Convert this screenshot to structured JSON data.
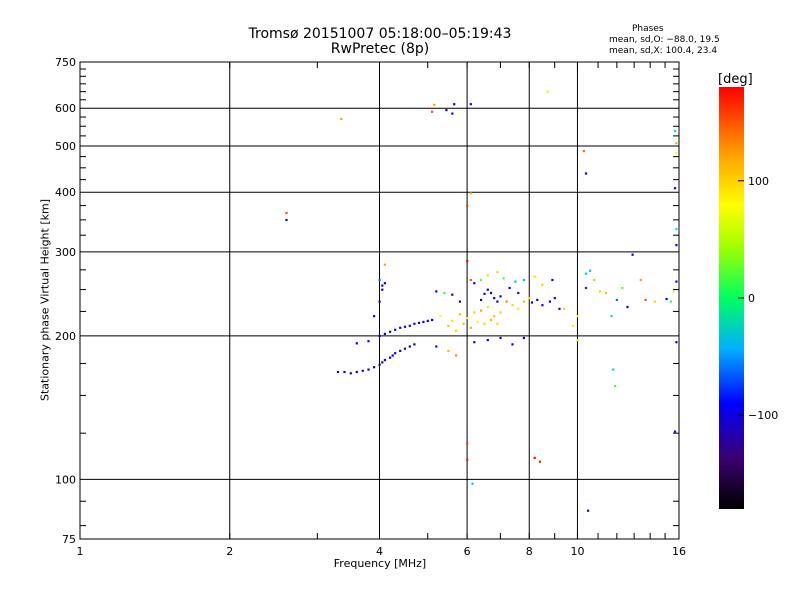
{
  "chart_data": {
    "type": "scatter",
    "title": "Tromsø 20151007 05:18:00–05:19:43",
    "subtitle": "RwPretec (8p)",
    "xlabel": "Frequency [MHz]",
    "ylabel": "Stationary phase Virtual Height [km]",
    "x_scale": "log",
    "y_scale": "log",
    "xlim": [
      1,
      16
    ],
    "ylim": [
      75,
      750
    ],
    "x_ticks": [
      1,
      2,
      4,
      6,
      8,
      10,
      16
    ],
    "x_tick_labels": [
      "1",
      "2",
      "4",
      "6",
      "8",
      "10",
      "16"
    ],
    "y_ticks": [
      75,
      100,
      200,
      300,
      400,
      500,
      600,
      750
    ],
    "y_tick_labels": [
      "75",
      "100",
      "200",
      "300",
      "400",
      "500",
      "600",
      "750"
    ],
    "grid": true,
    "colorbar": {
      "label": "[deg]",
      "range": [
        -180,
        180
      ],
      "ticks": [
        100,
        0,
        -100
      ],
      "tick_labels": [
        "100",
        "0",
        "−100"
      ]
    },
    "phase_stats": {
      "header": "Phases",
      "o_line": "mean, sd,O: −88.0, 19.5",
      "x_line": "mean, sd,X: 100.4, 23.4"
    },
    "points": [
      [
        3.3,
        168,
        -100
      ],
      [
        3.4,
        168,
        -105
      ],
      [
        3.5,
        167,
        -100
      ],
      [
        3.6,
        168,
        -98
      ],
      [
        3.7,
        169,
        -102
      ],
      [
        3.8,
        170,
        -100
      ],
      [
        3.9,
        172,
        -95
      ],
      [
        4.0,
        174,
        -100
      ],
      [
        4.05,
        176,
        -104
      ],
      [
        4.1,
        178,
        -99
      ],
      [
        4.2,
        180,
        -101
      ],
      [
        4.25,
        182,
        -97
      ],
      [
        4.3,
        184,
        -103
      ],
      [
        4.4,
        186,
        -100
      ],
      [
        4.5,
        188,
        -96
      ],
      [
        4.6,
        190,
        -101
      ],
      [
        4.7,
        192,
        -99
      ],
      [
        4.0,
        200,
        -102
      ],
      [
        4.1,
        202,
        -97
      ],
      [
        4.2,
        204,
        -103
      ],
      [
        4.3,
        206,
        -98
      ],
      [
        4.4,
        208,
        -100
      ],
      [
        4.5,
        209,
        -96
      ],
      [
        4.6,
        210,
        -101
      ],
      [
        4.7,
        212,
        -99
      ],
      [
        4.8,
        213,
        -100
      ],
      [
        4.9,
        214,
        -97
      ],
      [
        5.0,
        215,
        -102
      ],
      [
        5.1,
        216,
        -98
      ],
      [
        3.6,
        193,
        -100
      ],
      [
        3.8,
        195,
        -105
      ],
      [
        4.0,
        236,
        -100
      ],
      [
        4.05,
        250,
        -104
      ],
      [
        4.1,
        258,
        -98
      ],
      [
        4.0,
        262,
        -60
      ],
      [
        4.1,
        282,
        120
      ],
      [
        4.05,
        255,
        -101
      ],
      [
        3.9,
        220,
        -100
      ],
      [
        5.3,
        220,
        80
      ],
      [
        5.5,
        210,
        110
      ],
      [
        5.6,
        215,
        95
      ],
      [
        5.7,
        205,
        100
      ],
      [
        5.8,
        222,
        105
      ],
      [
        5.9,
        212,
        110
      ],
      [
        6.0,
        218,
        90
      ],
      [
        6.1,
        208,
        115
      ],
      [
        6.2,
        224,
        100
      ],
      [
        6.3,
        214,
        85
      ],
      [
        6.4,
        226,
        120
      ],
      [
        6.5,
        212,
        100
      ],
      [
        6.6,
        230,
        60
      ],
      [
        6.7,
        216,
        110
      ],
      [
        6.8,
        220,
        105
      ],
      [
        6.9,
        212,
        95
      ],
      [
        7.0,
        224,
        100
      ],
      [
        7.2,
        236,
        130
      ],
      [
        7.4,
        232,
        100
      ],
      [
        7.6,
        228,
        90
      ],
      [
        7.8,
        236,
        110
      ],
      [
        8.0,
        240,
        100
      ],
      [
        6.4,
        238,
        -95
      ],
      [
        6.5,
        245,
        -100
      ],
      [
        6.6,
        250,
        -105
      ],
      [
        6.7,
        246,
        -98
      ],
      [
        6.8,
        240,
        -102
      ],
      [
        6.9,
        236,
        -100
      ],
      [
        7.0,
        242,
        -96
      ],
      [
        7.3,
        252,
        -101
      ],
      [
        7.6,
        246,
        -98
      ],
      [
        8.1,
        235,
        -100
      ],
      [
        8.3,
        238,
        -103
      ],
      [
        8.5,
        232,
        -99
      ],
      [
        8.8,
        236,
        -100
      ],
      [
        9.0,
        240,
        -97
      ],
      [
        9.2,
        228,
        -101
      ],
      [
        5.2,
        248,
        -100
      ],
      [
        5.4,
        246,
        10
      ],
      [
        5.6,
        244,
        -99
      ],
      [
        5.8,
        236,
        -100
      ],
      [
        6.2,
        258,
        -100
      ],
      [
        6.4,
        262,
        30
      ],
      [
        6.6,
        268,
        90
      ],
      [
        6.9,
        272,
        100
      ],
      [
        7.1,
        264,
        20
      ],
      [
        7.5,
        260,
        -40
      ],
      [
        7.8,
        262,
        -30
      ],
      [
        8.2,
        266,
        60
      ],
      [
        8.5,
        256,
        100
      ],
      [
        8.9,
        262,
        -120
      ],
      [
        5.2,
        190,
        -95
      ],
      [
        5.5,
        186,
        110
      ],
      [
        5.7,
        182,
        130
      ],
      [
        6.2,
        194,
        -100
      ],
      [
        6.6,
        196,
        -98
      ],
      [
        7.0,
        198,
        -100
      ],
      [
        7.4,
        192,
        -96
      ],
      [
        7.8,
        198,
        -101
      ],
      [
        5.1,
        590,
        150
      ],
      [
        5.15,
        610,
        120
      ],
      [
        5.45,
        595,
        -100
      ],
      [
        5.6,
        585,
        -105
      ],
      [
        5.65,
        612,
        -98
      ],
      [
        6.1,
        612,
        -100
      ],
      [
        8.7,
        650,
        60
      ],
      [
        3.35,
        570,
        120
      ],
      [
        2.6,
        362,
        150
      ],
      [
        2.6,
        350,
        -100
      ],
      [
        6.0,
        375,
        160
      ],
      [
        6.1,
        398,
        110
      ],
      [
        6.0,
        287,
        180
      ],
      [
        6.1,
        262,
        150
      ],
      [
        6.0,
        119,
        160
      ],
      [
        6.0,
        110,
        170
      ],
      [
        6.15,
        98,
        -30
      ],
      [
        8.2,
        111,
        175
      ],
      [
        8.4,
        109,
        170
      ],
      [
        10.5,
        86,
        -110
      ],
      [
        10.4,
        252,
        -80
      ],
      [
        10.6,
        274,
        -40
      ],
      [
        10.8,
        262,
        40
      ],
      [
        11.1,
        248,
        100
      ],
      [
        11.4,
        246,
        110
      ],
      [
        11.7,
        220,
        -10
      ],
      [
        12.0,
        238,
        -60
      ],
      [
        12.3,
        252,
        30
      ],
      [
        12.6,
        230,
        -100
      ],
      [
        12.9,
        296,
        -120
      ],
      [
        11.8,
        170,
        -20
      ],
      [
        11.9,
        157,
        20
      ],
      [
        13.4,
        262,
        120
      ],
      [
        13.7,
        238,
        150
      ],
      [
        14.3,
        236,
        100
      ],
      [
        15.1,
        239,
        -100
      ],
      [
        15.6,
        248,
        70
      ],
      [
        15.4,
        236,
        10
      ],
      [
        15.8,
        260,
        -100
      ],
      [
        15.7,
        538,
        -20
      ],
      [
        15.8,
        507,
        120
      ],
      [
        15.8,
        484,
        80
      ],
      [
        15.7,
        408,
        -100
      ],
      [
        15.8,
        335,
        -10
      ],
      [
        15.8,
        310,
        -100
      ],
      [
        15.8,
        194,
        -100
      ],
      [
        15.7,
        126,
        -100
      ],
      [
        10.4,
        438,
        -110
      ],
      [
        10.3,
        488,
        140
      ],
      [
        10.4,
        270,
        -30
      ],
      [
        10.0,
        220,
        80
      ],
      [
        9.4,
        228,
        100
      ],
      [
        9.8,
        210,
        90
      ],
      [
        10.0,
        196,
        60
      ]
    ]
  }
}
